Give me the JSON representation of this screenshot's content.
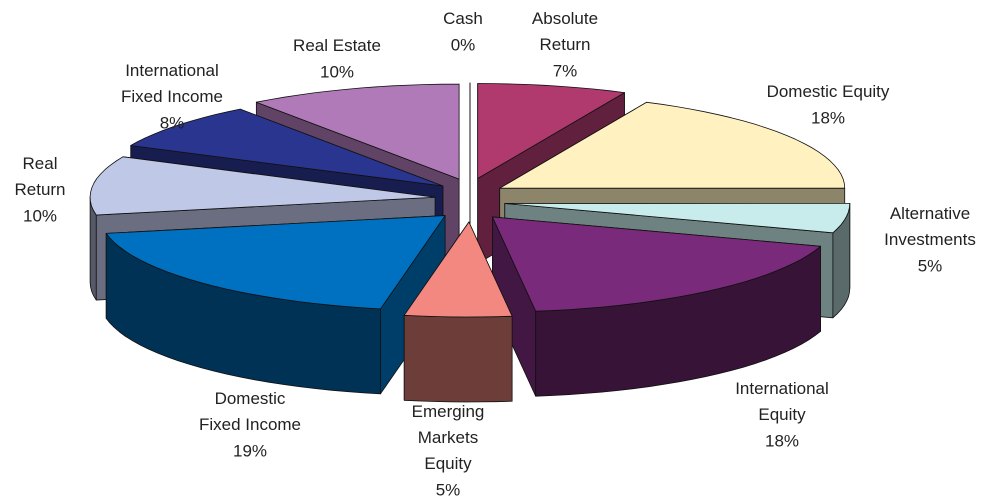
{
  "chart_data": {
    "type": "pie3d",
    "categories": [
      "Cash",
      "Absolute\nReturn",
      "Domestic Equity",
      "Alternative\nInvestments",
      "International\nEquity",
      "Emerging\nMarkets\nEquity",
      "Domestic\nFixed Income",
      "Real\nReturn",
      "International\nFixed Income",
      "Real Estate"
    ],
    "values": [
      0,
      7,
      18,
      5,
      18,
      5,
      19,
      10,
      8,
      10
    ],
    "value_labels": [
      "0%",
      "7%",
      "18%",
      "5%",
      "18%",
      "5%",
      "19%",
      "10%",
      "8%",
      "10%"
    ],
    "colors": [
      "#ffffff",
      "#b03a6e",
      "#fff2c0",
      "#c8ecec",
      "#7a2a7a",
      "#f28880",
      "#0070c0",
      "#c0c8e8",
      "#2a3590",
      "#b07ab8"
    ]
  }
}
